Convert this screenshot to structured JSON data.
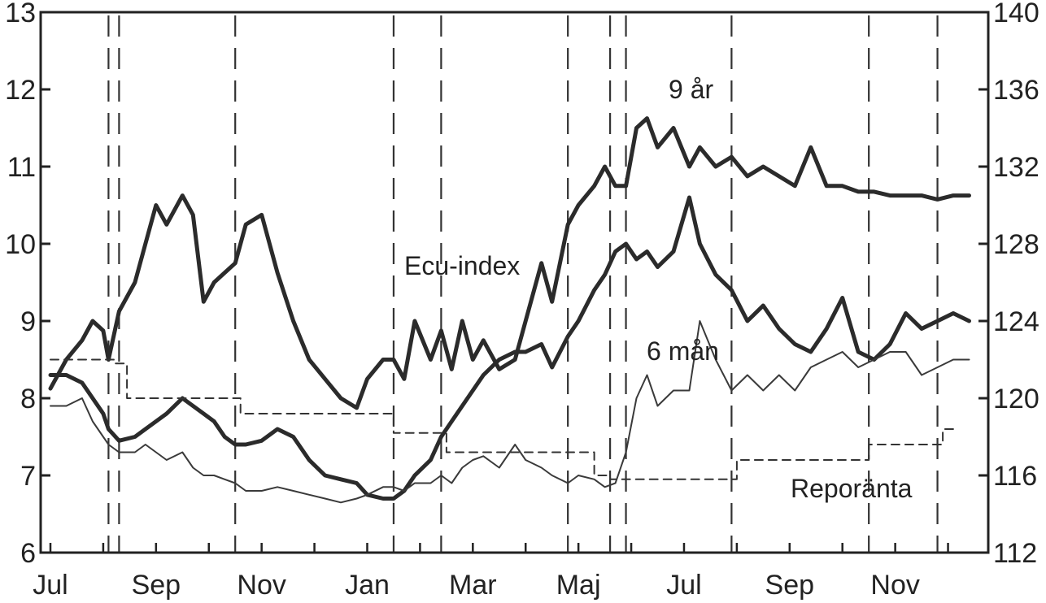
{
  "chart_data": {
    "type": "line",
    "title": "",
    "x_ticks": [
      "Jul",
      "Sep",
      "Nov",
      "Jan",
      "Mar",
      "Maj",
      "Jul",
      "Sep",
      "Nov"
    ],
    "x_range_months": [
      0,
      17.5
    ],
    "y_left": {
      "label": "",
      "range": [
        6,
        13
      ],
      "ticks": [
        "6",
        "7",
        "8",
        "9",
        "10",
        "11",
        "12",
        "13"
      ]
    },
    "y_right": {
      "label": "",
      "range": [
        112,
        140
      ],
      "ticks": [
        "112",
        "116",
        "120",
        "124",
        "128",
        "132",
        "136",
        "140"
      ]
    },
    "annotations": {
      "ecu": "Ecu-index",
      "y9": "9 år",
      "m6": "6 mån",
      "repo": "Reporänta"
    },
    "event_lines_months": [
      1.1,
      1.3,
      3.5,
      6.5,
      7.4,
      9.8,
      10.6,
      10.9,
      12.9,
      15.5,
      16.8
    ],
    "series": [
      {
        "name": "Ecu-index",
        "axis": "right",
        "style": "thick",
        "x": [
          0,
          0.3,
          0.6,
          0.8,
          1.0,
          1.1,
          1.3,
          1.6,
          1.8,
          2.0,
          2.2,
          2.5,
          2.7,
          2.9,
          3.1,
          3.3,
          3.5,
          3.7,
          4.0,
          4.3,
          4.6,
          4.9,
          5.2,
          5.5,
          5.8,
          6.0,
          6.3,
          6.5,
          6.7,
          6.9,
          7.2,
          7.4,
          7.6,
          7.8,
          8.0,
          8.2,
          8.5,
          8.8,
          9.0,
          9.3,
          9.5,
          9.8,
          10.0,
          10.3,
          10.5,
          10.7,
          10.9,
          11.1,
          11.3,
          11.5,
          11.8,
          12.1,
          12.3,
          12.6,
          12.9,
          13.2,
          13.5,
          13.8,
          14.1,
          14.4,
          14.7,
          15.0,
          15.3,
          15.6,
          15.9,
          16.2,
          16.5,
          16.8,
          17.1,
          17.4
        ],
        "y": [
          120.5,
          122,
          123,
          124,
          123.5,
          122,
          124.5,
          126,
          128,
          130,
          129,
          130.5,
          129.5,
          125,
          126,
          126.5,
          127,
          129,
          129.5,
          126.5,
          124,
          122,
          121,
          120,
          119.5,
          121,
          122,
          122,
          121,
          124,
          122,
          123.5,
          121.5,
          124,
          122,
          123,
          121.5,
          122,
          124,
          127,
          125,
          129,
          130,
          131,
          132,
          131,
          131,
          134,
          134.5,
          133,
          134,
          132,
          133,
          132,
          132.5,
          131.5,
          132,
          131.5,
          131,
          133,
          131,
          131,
          130.7,
          130.7,
          130.5,
          130.5,
          130.5,
          130.3,
          130.5,
          130.5
        ]
      },
      {
        "name": "9 år",
        "axis": "left",
        "style": "thick",
        "x": [
          0,
          0.3,
          0.6,
          0.8,
          1.0,
          1.1,
          1.3,
          1.6,
          1.8,
          2.0,
          2.2,
          2.5,
          2.7,
          2.9,
          3.1,
          3.3,
          3.5,
          3.7,
          4.0,
          4.3,
          4.6,
          4.9,
          5.2,
          5.5,
          5.8,
          6.0,
          6.3,
          6.5,
          6.7,
          6.9,
          7.2,
          7.4,
          7.6,
          7.8,
          8.0,
          8.2,
          8.5,
          8.8,
          9.0,
          9.3,
          9.5,
          9.8,
          10.0,
          10.3,
          10.5,
          10.7,
          10.9,
          11.1,
          11.3,
          11.5,
          11.8,
          12.1,
          12.3,
          12.6,
          12.9,
          13.2,
          13.5,
          13.8,
          14.1,
          14.4,
          14.7,
          15.0,
          15.3,
          15.6,
          15.9,
          16.2,
          16.5,
          16.8,
          17.1,
          17.4
        ],
        "y": [
          8.3,
          8.3,
          8.2,
          8.0,
          7.8,
          7.6,
          7.45,
          7.5,
          7.6,
          7.7,
          7.8,
          8.0,
          7.9,
          7.8,
          7.7,
          7.5,
          7.4,
          7.4,
          7.45,
          7.6,
          7.5,
          7.2,
          7.0,
          6.95,
          6.9,
          6.75,
          6.7,
          6.7,
          6.8,
          7.0,
          7.2,
          7.5,
          7.7,
          7.9,
          8.1,
          8.3,
          8.5,
          8.6,
          8.6,
          8.7,
          8.4,
          8.8,
          9.0,
          9.4,
          9.6,
          9.9,
          10.0,
          9.8,
          9.9,
          9.7,
          9.9,
          10.6,
          10.0,
          9.6,
          9.4,
          9.0,
          9.2,
          8.9,
          8.7,
          8.6,
          8.9,
          9.3,
          8.6,
          8.5,
          8.7,
          9.1,
          8.9,
          9.0,
          9.1,
          9.0
        ]
      },
      {
        "name": "6 mån",
        "axis": "left",
        "style": "thin",
        "x": [
          0,
          0.3,
          0.6,
          0.8,
          1.0,
          1.1,
          1.3,
          1.6,
          1.8,
          2.0,
          2.2,
          2.5,
          2.7,
          2.9,
          3.1,
          3.3,
          3.5,
          3.7,
          4.0,
          4.3,
          4.6,
          4.9,
          5.2,
          5.5,
          5.8,
          6.0,
          6.3,
          6.5,
          6.7,
          6.9,
          7.2,
          7.4,
          7.6,
          7.8,
          8.0,
          8.2,
          8.5,
          8.8,
          9.0,
          9.3,
          9.5,
          9.8,
          10.0,
          10.3,
          10.5,
          10.7,
          10.9,
          11.1,
          11.3,
          11.5,
          11.8,
          12.1,
          12.3,
          12.6,
          12.9,
          13.2,
          13.5,
          13.8,
          14.1,
          14.4,
          14.7,
          15.0,
          15.3,
          15.6,
          15.9,
          16.2,
          16.5,
          16.8,
          17.1,
          17.4
        ],
        "y": [
          7.9,
          7.9,
          8.0,
          7.7,
          7.5,
          7.4,
          7.3,
          7.3,
          7.4,
          7.3,
          7.2,
          7.3,
          7.1,
          7.0,
          7.0,
          6.95,
          6.9,
          6.8,
          6.8,
          6.85,
          6.8,
          6.75,
          6.7,
          6.65,
          6.7,
          6.75,
          6.85,
          6.85,
          6.8,
          6.9,
          6.9,
          7.0,
          6.9,
          7.1,
          7.2,
          7.25,
          7.1,
          7.4,
          7.2,
          7.1,
          7.0,
          6.9,
          7.0,
          6.95,
          6.85,
          6.9,
          7.3,
          8.0,
          8.3,
          7.9,
          8.1,
          8.1,
          9.0,
          8.5,
          8.1,
          8.3,
          8.1,
          8.3,
          8.1,
          8.4,
          8.5,
          8.6,
          8.4,
          8.5,
          8.6,
          8.6,
          8.3,
          8.4,
          8.5,
          8.5
        ]
      },
      {
        "name": "Reporänta",
        "axis": "left",
        "style": "dashed",
        "step": true,
        "x": [
          0,
          1.2,
          1.2,
          1.45,
          1.45,
          3.6,
          3.6,
          6.5,
          6.5,
          7.5,
          7.5,
          10.3,
          10.3,
          10.6,
          10.6,
          11.0,
          11.0,
          13.0,
          13.0,
          15.5,
          15.5,
          16.9,
          16.9,
          17.2
        ],
        "y": [
          8.5,
          8.5,
          8.45,
          8.45,
          8.0,
          8.0,
          7.8,
          7.8,
          7.55,
          7.55,
          7.3,
          7.3,
          7.0,
          7.0,
          6.95,
          6.95,
          6.95,
          6.95,
          7.2,
          7.2,
          7.4,
          7.4,
          7.6,
          7.6
        ]
      }
    ]
  }
}
